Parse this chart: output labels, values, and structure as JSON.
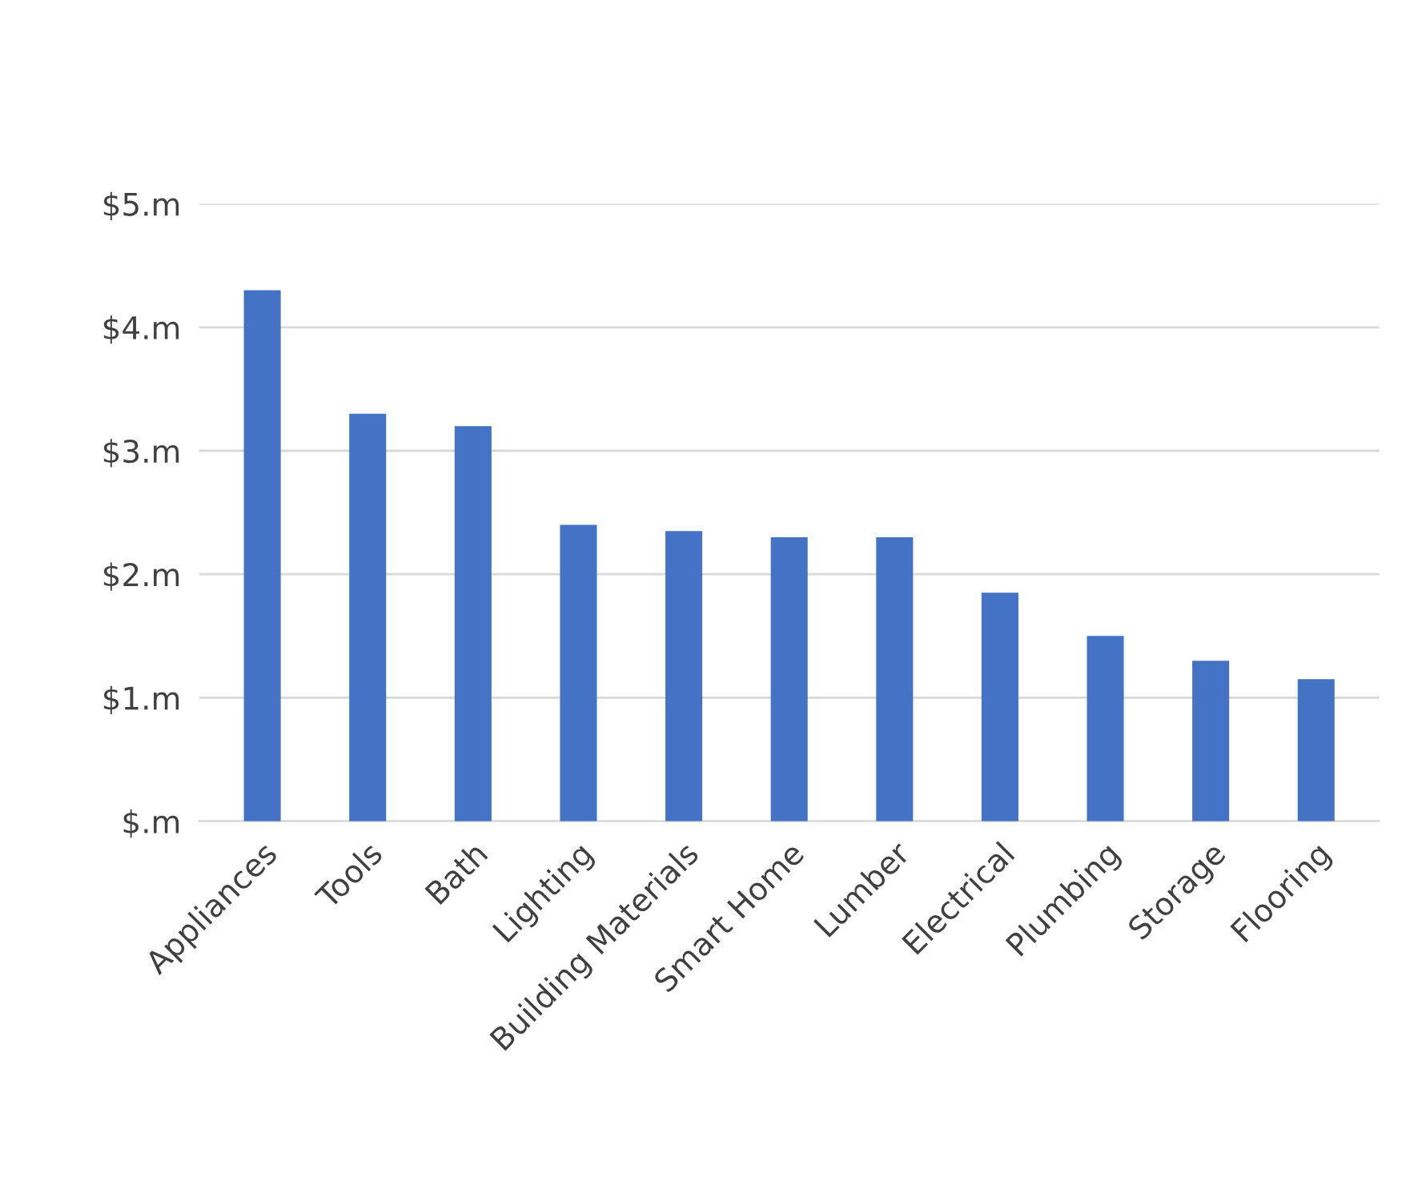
{
  "chart_data": {
    "type": "bar",
    "categories": [
      "Appliances",
      "Tools",
      "Bath",
      "Lighting",
      "Building Materials",
      "Smart Home",
      "Lumber",
      "Electrical",
      "Plumbing",
      "Storage",
      "Flooring"
    ],
    "values": [
      4.3,
      3.3,
      3.2,
      2.4,
      2.35,
      2.3,
      2.3,
      1.85,
      1.5,
      1.3,
      1.15
    ],
    "color": "#4472c4",
    "ylim": [
      0,
      5
    ],
    "yticks": [
      {
        "value": 0,
        "label": "$.m"
      },
      {
        "value": 1,
        "label": "$1.m"
      },
      {
        "value": 2,
        "label": "$2.m"
      },
      {
        "value": 3,
        "label": "$3.m"
      },
      {
        "value": 4,
        "label": "$4.m"
      },
      {
        "value": 5,
        "label": "$5.m"
      }
    ],
    "grid": "y",
    "legend": false
  }
}
